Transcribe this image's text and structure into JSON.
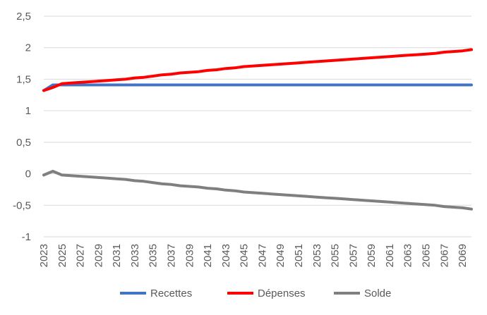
{
  "chart_data": {
    "type": "line",
    "title": "",
    "xlabel": "",
    "ylabel": "",
    "x": [
      2023,
      2024,
      2025,
      2026,
      2027,
      2028,
      2029,
      2030,
      2031,
      2032,
      2033,
      2034,
      2035,
      2036,
      2037,
      2038,
      2039,
      2040,
      2041,
      2042,
      2043,
      2044,
      2045,
      2046,
      2047,
      2048,
      2049,
      2050,
      2051,
      2052,
      2053,
      2054,
      2055,
      2056,
      2057,
      2058,
      2059,
      2060,
      2061,
      2062,
      2063,
      2064,
      2065,
      2066,
      2067,
      2068,
      2069,
      2070
    ],
    "x_tick_labels": [
      "2023",
      "2025",
      "2027",
      "2029",
      "2031",
      "2033",
      "2035",
      "2037",
      "2039",
      "2041",
      "2043",
      "2045",
      "2047",
      "2049",
      "2051",
      "2053",
      "2055",
      "2057",
      "2059",
      "2061",
      "2063",
      "2065",
      "2067",
      "2069"
    ],
    "ylim": [
      -1,
      2.5
    ],
    "y_ticks": [
      -1,
      -0.5,
      0,
      0.5,
      1,
      1.5,
      2,
      2.5
    ],
    "y_tick_labels": [
      "-1",
      "-0,5",
      "0",
      "0,5",
      "1",
      "1,5",
      "2",
      "2,5"
    ],
    "grid": true,
    "legend_position": "bottom",
    "series": [
      {
        "name": "Recettes",
        "color": "#4472c4",
        "values": [
          1.32,
          1.41,
          1.41,
          1.41,
          1.41,
          1.41,
          1.41,
          1.41,
          1.41,
          1.41,
          1.41,
          1.41,
          1.41,
          1.41,
          1.41,
          1.41,
          1.41,
          1.41,
          1.41,
          1.41,
          1.41,
          1.41,
          1.41,
          1.41,
          1.41,
          1.41,
          1.41,
          1.41,
          1.41,
          1.41,
          1.41,
          1.41,
          1.41,
          1.41,
          1.41,
          1.41,
          1.41,
          1.41,
          1.41,
          1.41,
          1.41,
          1.41,
          1.41,
          1.41,
          1.41,
          1.41,
          1.41,
          1.41
        ]
      },
      {
        "name": "Dépenses",
        "color": "#ff0000",
        "values": [
          1.32,
          1.37,
          1.43,
          1.44,
          1.45,
          1.46,
          1.47,
          1.48,
          1.49,
          1.5,
          1.52,
          1.53,
          1.55,
          1.57,
          1.58,
          1.6,
          1.61,
          1.62,
          1.64,
          1.65,
          1.67,
          1.68,
          1.7,
          1.71,
          1.72,
          1.73,
          1.74,
          1.75,
          1.76,
          1.77,
          1.78,
          1.79,
          1.8,
          1.81,
          1.82,
          1.83,
          1.84,
          1.85,
          1.86,
          1.87,
          1.88,
          1.89,
          1.9,
          1.91,
          1.93,
          1.94,
          1.95,
          1.97
        ]
      },
      {
        "name": "Solde",
        "color": "#7f7f7f",
        "values": [
          -0.02,
          0.04,
          -0.02,
          -0.03,
          -0.04,
          -0.05,
          -0.06,
          -0.07,
          -0.08,
          -0.09,
          -0.11,
          -0.12,
          -0.14,
          -0.16,
          -0.17,
          -0.19,
          -0.2,
          -0.21,
          -0.23,
          -0.24,
          -0.26,
          -0.27,
          -0.29,
          -0.3,
          -0.31,
          -0.32,
          -0.33,
          -0.34,
          -0.35,
          -0.36,
          -0.37,
          -0.38,
          -0.39,
          -0.4,
          -0.41,
          -0.42,
          -0.43,
          -0.44,
          -0.45,
          -0.46,
          -0.47,
          -0.48,
          -0.49,
          -0.5,
          -0.52,
          -0.53,
          -0.54,
          -0.56
        ]
      }
    ]
  }
}
